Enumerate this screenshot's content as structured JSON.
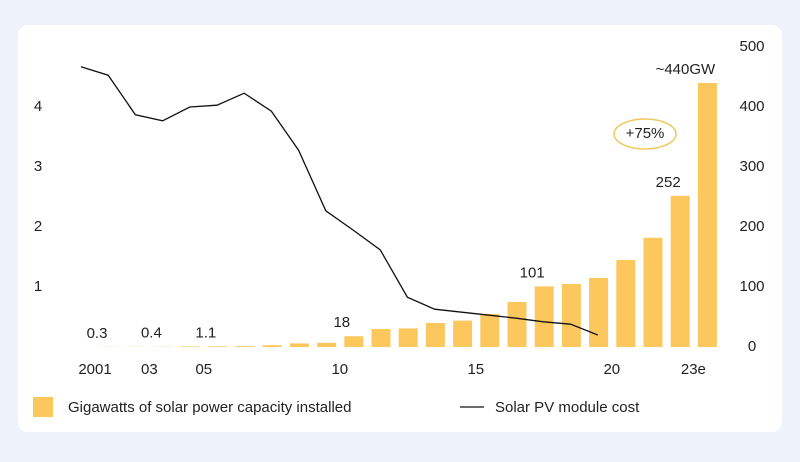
{
  "chart_data": {
    "type": "bar_line",
    "categories": [
      "2001",
      null,
      "03",
      null,
      "05",
      null,
      null,
      null,
      null,
      "10",
      null,
      null,
      null,
      null,
      "15",
      null,
      null,
      null,
      null,
      "20",
      null,
      null,
      "23e"
    ],
    "series": [
      {
        "name": "Gigawatts of solar power capacity installed",
        "type": "bar",
        "axis": "y2",
        "color": "#fcc85e",
        "values": [
          0.3,
          0.3,
          0.4,
          1,
          1.1,
          1.5,
          3,
          6,
          7,
          18,
          30,
          31,
          40,
          44,
          55,
          75,
          101,
          105,
          115,
          145,
          182,
          252,
          440
        ],
        "value_labels": [
          "0.3",
          null,
          "0.4",
          null,
          "1.1",
          null,
          null,
          null,
          null,
          "18",
          null,
          null,
          null,
          null,
          null,
          null,
          "101",
          null,
          null,
          null,
          null,
          "252",
          "~440GW"
        ]
      },
      {
        "name": "Solar PV module cost",
        "type": "line",
        "axis": "y",
        "color": "#111111",
        "values": [
          4.67,
          4.53,
          3.87,
          3.77,
          4.0,
          4.03,
          4.23,
          3.93,
          3.28,
          2.27,
          1.95,
          1.62,
          0.83,
          0.63,
          0.58,
          0.53,
          0.48,
          0.42,
          0.38,
          0.2,
          null,
          null,
          null
        ]
      }
    ],
    "ylim": [
      0,
      5
    ],
    "yticks": [
      1,
      2,
      3,
      4
    ],
    "y2lim": [
      0,
      500
    ],
    "y2ticks": [
      0,
      100,
      200,
      300,
      400,
      500
    ],
    "annotation": "+75%",
    "grid": false
  }
}
